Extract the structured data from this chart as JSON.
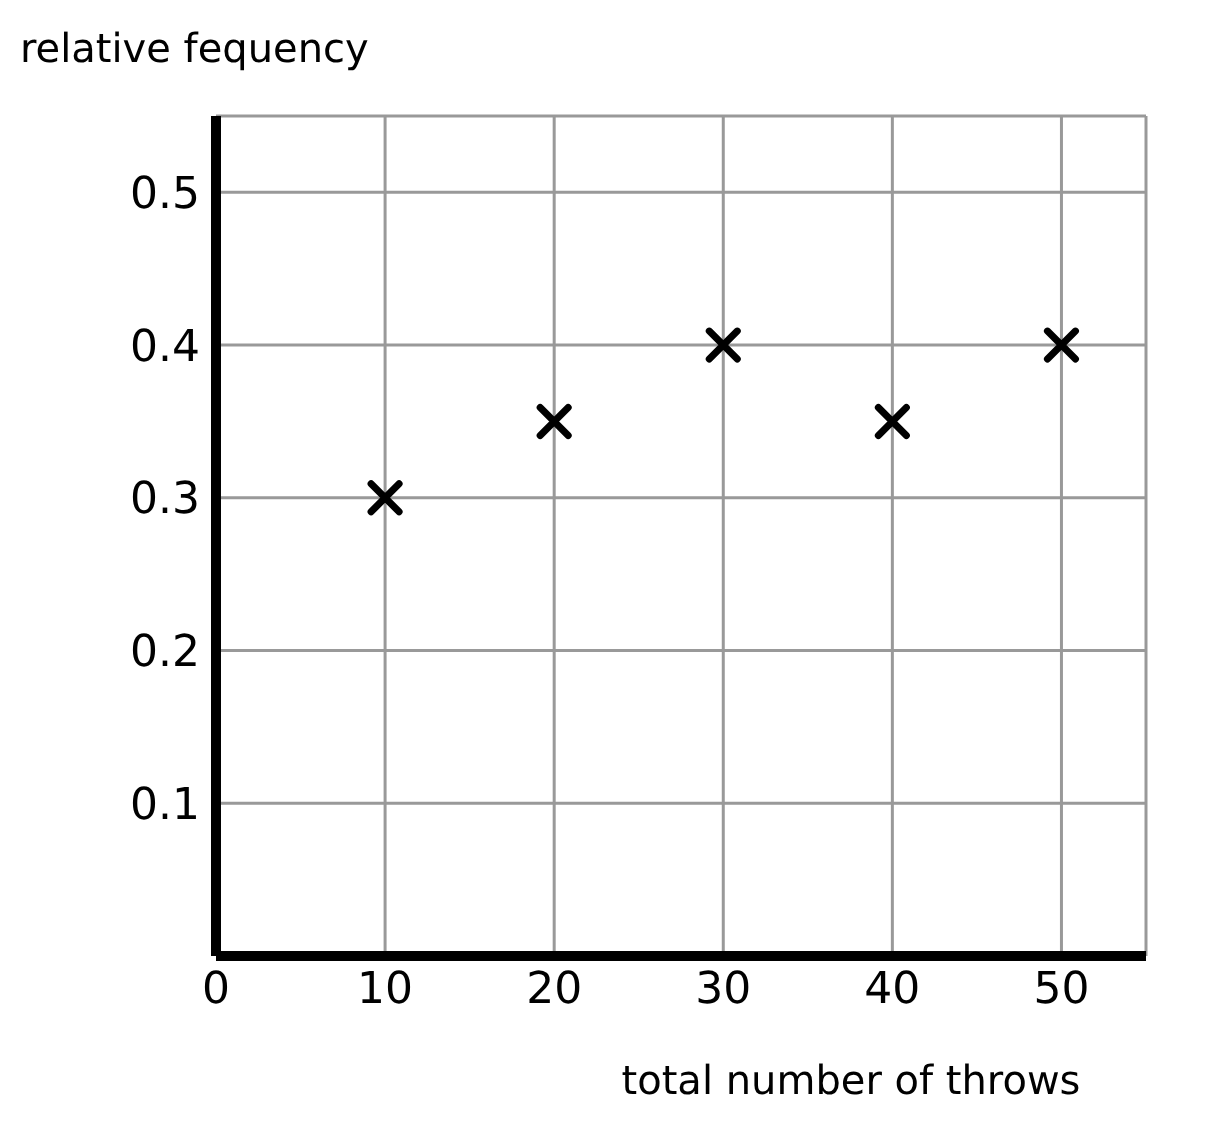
{
  "chart_data": {
    "type": "scatter",
    "ylabel": "relative fequency",
    "xlabel": "total number of throws",
    "x": [
      10,
      20,
      30,
      40,
      50
    ],
    "series": [
      {
        "color": "#000000",
        "values": [
          0.3,
          0.35,
          0.4,
          0.35,
          0.4
        ]
      }
    ],
    "xlim": [
      0,
      55
    ],
    "xticks": [
      0,
      10,
      20,
      30,
      40,
      50
    ],
    "ylim": [
      0,
      0.55
    ],
    "yticks": [
      0.1,
      0.2,
      0.3,
      0.4,
      0.5
    ],
    "grid": true,
    "marker": "cross",
    "legend": false
  }
}
